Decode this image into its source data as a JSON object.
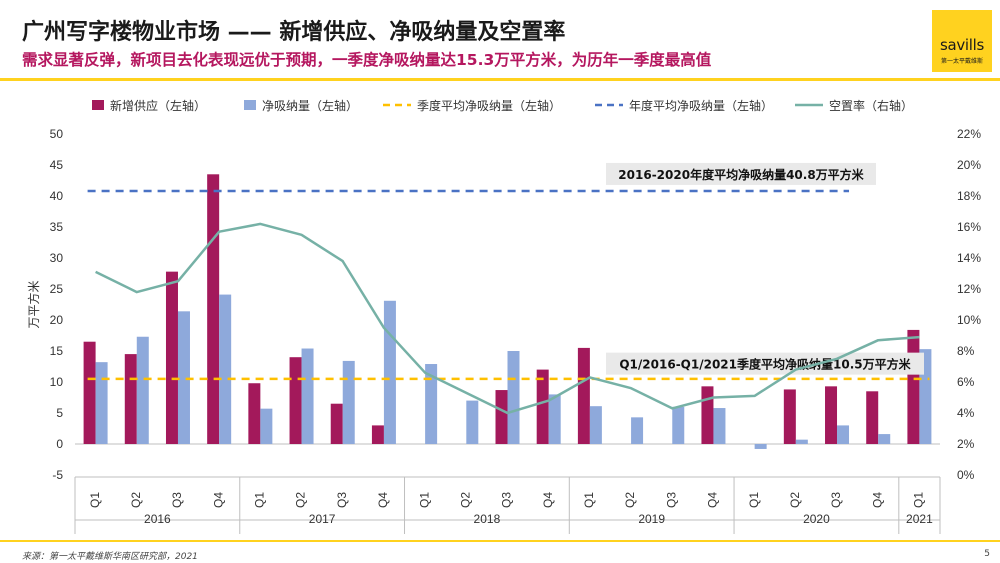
{
  "header": {
    "title": "广州写字楼物业市场 —— 新增供应、净吸纳量及空置率",
    "subtitle": "需求显著反弹，新项目去化表现远优于预期，一季度净吸纳量达15.3万平方米，为历年一季度最高值"
  },
  "logo": {
    "word": "savills",
    "sub": "第一太平戴维斯"
  },
  "footer": {
    "source": "来源：第一太平戴维斯华南区研究部，2021",
    "page": "5"
  },
  "colors": {
    "supply": "#a3195b",
    "absorption": "#8ea9db",
    "quarterly_avg": "#ffc000",
    "annual_avg": "#4a72c4",
    "vacancy": "#76b1a6",
    "accent": "#ffd21f"
  },
  "chart_data": {
    "type": "bar",
    "ylabel": "万平方米",
    "ylim": [
      -5,
      50
    ],
    "yticks": [
      -5,
      0,
      5,
      10,
      15,
      20,
      25,
      30,
      35,
      40,
      45,
      50
    ],
    "y2lim": [
      0,
      22
    ],
    "y2ticks": [
      "0%",
      "2%",
      "4%",
      "6%",
      "8%",
      "10%",
      "12%",
      "14%",
      "16%",
      "18%",
      "20%",
      "22%"
    ],
    "categories": [
      "Q1",
      "Q2",
      "Q3",
      "Q4",
      "Q1",
      "Q2",
      "Q3",
      "Q4",
      "Q1",
      "Q2",
      "Q3",
      "Q4",
      "Q1",
      "Q2",
      "Q3",
      "Q4",
      "Q1",
      "Q2",
      "Q3",
      "Q4",
      "Q1"
    ],
    "years": [
      {
        "label": "2016",
        "count": 4
      },
      {
        "label": "2017",
        "count": 4
      },
      {
        "label": "2018",
        "count": 4
      },
      {
        "label": "2019",
        "count": 4
      },
      {
        "label": "2020",
        "count": 4
      },
      {
        "label": "2021",
        "count": 1
      }
    ],
    "series": [
      {
        "name": "新增供应（左轴）",
        "kind": "bar",
        "values": [
          16.5,
          14.5,
          27.8,
          43.5,
          9.8,
          14.0,
          6.5,
          3.0,
          0,
          0,
          8.7,
          12.0,
          15.5,
          0,
          0,
          9.3,
          0,
          8.8,
          9.3,
          8.5,
          18.4
        ]
      },
      {
        "name": "净吸纳量（左轴）",
        "kind": "bar",
        "values": [
          13.2,
          17.3,
          21.4,
          24.1,
          5.7,
          15.4,
          13.4,
          23.1,
          12.9,
          7.0,
          15.0,
          8.0,
          6.1,
          4.3,
          6.0,
          5.8,
          -0.8,
          0.7,
          3.0,
          1.6,
          15.3
        ]
      },
      {
        "name": "季度平均净吸纳量（左轴）",
        "kind": "hline",
        "value": 10.5
      },
      {
        "name": "年度平均净吸纳量（左轴）",
        "kind": "hline",
        "value": 40.8
      },
      {
        "name": "空置率（右轴）",
        "kind": "line",
        "values": [
          13.1,
          11.8,
          12.5,
          15.7,
          16.2,
          15.5,
          13.8,
          9.5,
          6.6,
          5.3,
          4.0,
          4.8,
          6.3,
          5.6,
          4.3,
          5.0,
          5.1,
          6.8,
          7.5,
          8.7,
          8.9
        ]
      }
    ],
    "annotations": [
      {
        "text": "2016-2020年度平均净吸纳量40.8万平方米",
        "y": 43.4
      },
      {
        "text": "Q1/2016-Q1/2021季度平均净吸纳量10.5万平方米",
        "y": 12.8
      }
    ],
    "legend_position": "top",
    "grid": false
  }
}
